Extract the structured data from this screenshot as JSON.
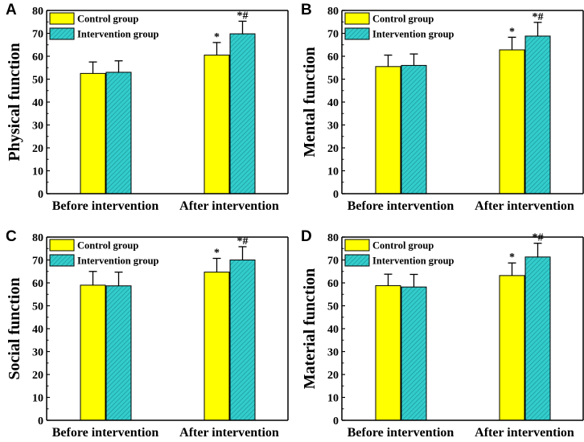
{
  "colors": {
    "control": "#ffff00",
    "intervention": "#33cccc",
    "hatch": "#1a8f8f",
    "axis": "#000000"
  },
  "chart_data": [
    {
      "panel": "A",
      "type": "bar",
      "ylabel": "Physical function",
      "categories": [
        "Before intervention",
        "After intervention"
      ],
      "ylim": [
        0,
        80
      ],
      "yticks": [
        0,
        10,
        20,
        30,
        40,
        50,
        60,
        70,
        80
      ],
      "legend": [
        "Control group",
        "Intervention group"
      ],
      "series": [
        {
          "name": "Control group",
          "values": [
            52.5,
            60.5
          ],
          "errors": [
            5.0,
            5.5
          ],
          "annotations": [
            "",
            "*"
          ]
        },
        {
          "name": "Intervention group",
          "values": [
            53.0,
            69.8
          ],
          "errors": [
            5.0,
            5.5
          ],
          "annotations": [
            "",
            "*#"
          ]
        }
      ]
    },
    {
      "panel": "B",
      "type": "bar",
      "ylabel": "Mental function",
      "categories": [
        "Before intervention",
        "After intervention"
      ],
      "ylim": [
        0,
        80
      ],
      "yticks": [
        0,
        10,
        20,
        30,
        40,
        50,
        60,
        70,
        80
      ],
      "legend": [
        "Control group",
        "Intervention group"
      ],
      "series": [
        {
          "name": "Control group",
          "values": [
            55.5,
            62.8
          ],
          "errors": [
            5.0,
            5.5
          ],
          "annotations": [
            "",
            "*"
          ]
        },
        {
          "name": "Intervention group",
          "values": [
            56.0,
            68.8
          ],
          "errors": [
            5.0,
            6.0
          ],
          "annotations": [
            "",
            "*#"
          ]
        }
      ]
    },
    {
      "panel": "C",
      "type": "bar",
      "ylabel": "Social function",
      "categories": [
        "Before intervention",
        "After intervention"
      ],
      "ylim": [
        0,
        80
      ],
      "yticks": [
        0,
        10,
        20,
        30,
        40,
        50,
        60,
        70,
        80
      ],
      "legend": [
        "Control group",
        "Intervention group"
      ],
      "series": [
        {
          "name": "Control group",
          "values": [
            59.0,
            64.7
          ],
          "errors": [
            6.0,
            6.0
          ],
          "annotations": [
            "",
            "*"
          ]
        },
        {
          "name": "Intervention group",
          "values": [
            58.7,
            70.0
          ],
          "errors": [
            6.0,
            5.8
          ],
          "annotations": [
            "",
            "*#"
          ]
        }
      ]
    },
    {
      "panel": "D",
      "type": "bar",
      "ylabel": "Material function",
      "categories": [
        "Before intervention",
        "After intervention"
      ],
      "ylim": [
        0,
        80
      ],
      "yticks": [
        0,
        10,
        20,
        30,
        40,
        50,
        60,
        70,
        80
      ],
      "legend": [
        "Control group",
        "Intervention group"
      ],
      "series": [
        {
          "name": "Control group",
          "values": [
            58.8,
            63.2
          ],
          "errors": [
            5.0,
            5.5
          ],
          "annotations": [
            "",
            "*"
          ]
        },
        {
          "name": "Intervention group",
          "values": [
            58.2,
            71.3
          ],
          "errors": [
            5.5,
            6.0
          ],
          "annotations": [
            "",
            "*#"
          ]
        }
      ]
    }
  ]
}
